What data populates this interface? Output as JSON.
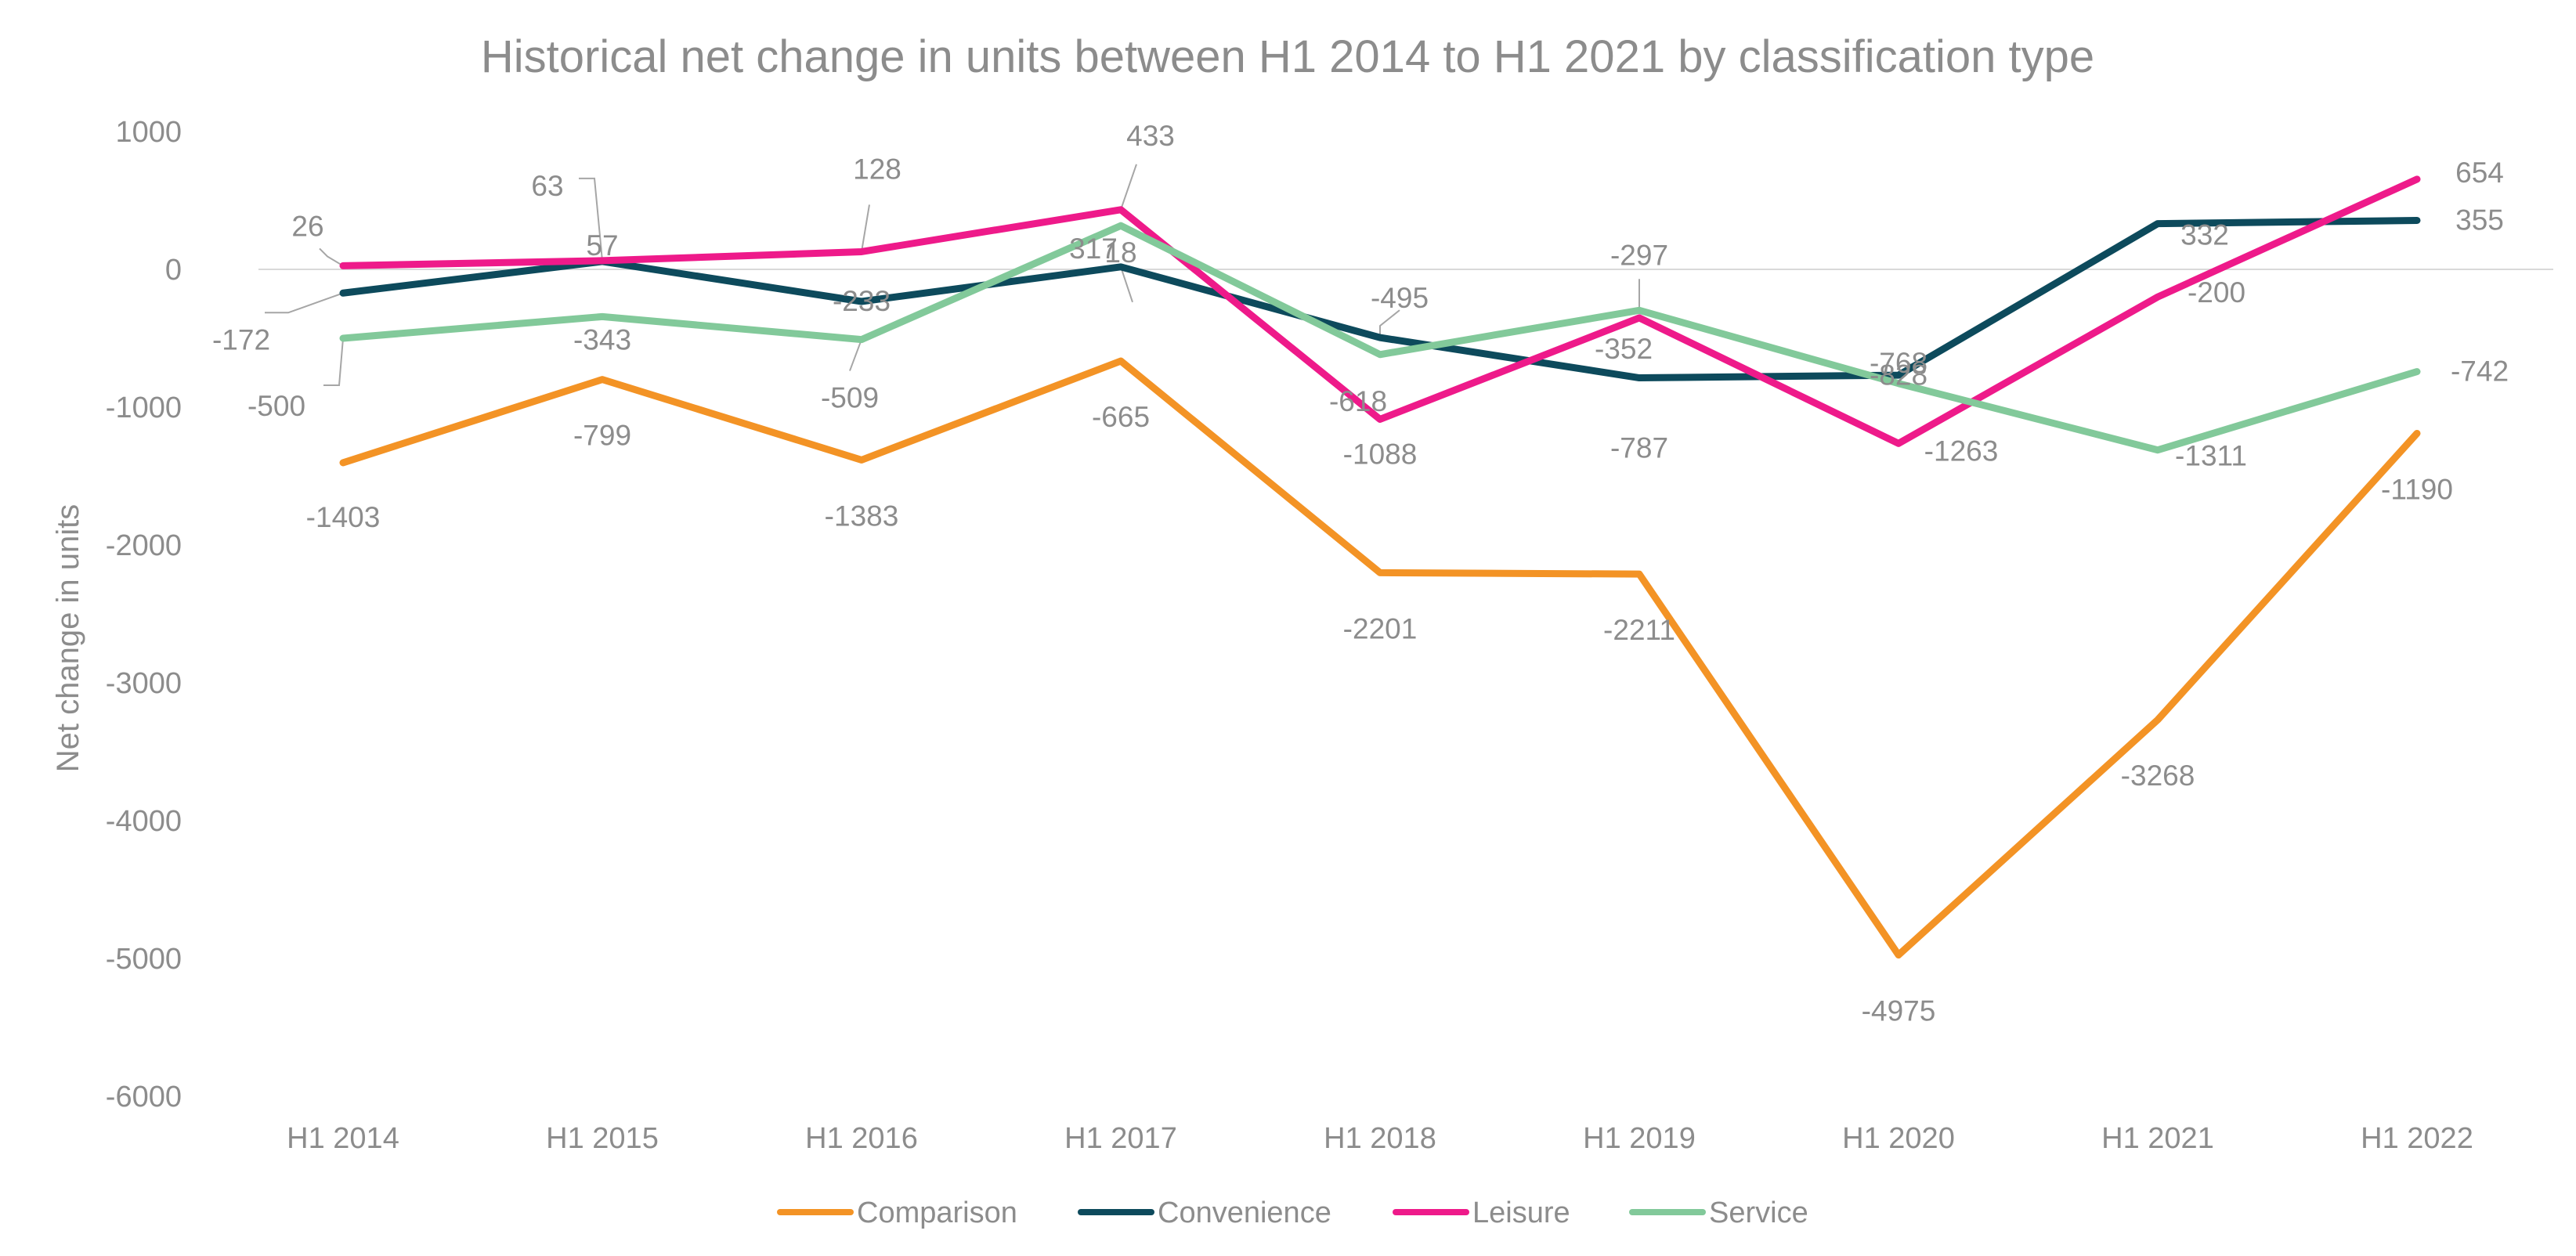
{
  "chart_data": {
    "type": "line",
    "title": "Historical net change in units between H1 2014 to H1 2021 by classification type",
    "xlabel": "",
    "ylabel": "Net change in units",
    "ylim": [
      -6000,
      1000
    ],
    "yticks": [
      1000,
      0,
      -1000,
      -2000,
      -3000,
      -4000,
      -5000,
      -6000
    ],
    "categories": [
      "H1 2014",
      "H1 2015",
      "H1 2016",
      "H1 2017",
      "H1 2018",
      "H1 2019",
      "H1 2020",
      "H1 2021",
      "H1 2022"
    ],
    "legend_position": "bottom",
    "series": [
      {
        "name": "Comparison",
        "color": "#f39325",
        "values": [
          -1403,
          -799,
          -1383,
          -665,
          -2201,
          -2211,
          -4975,
          -3268,
          -1190
        ]
      },
      {
        "name": "Convenience",
        "color": "#0d4a5c",
        "values": [
          -172,
          57,
          -233,
          18,
          -495,
          -787,
          -768,
          332,
          355
        ]
      },
      {
        "name": "Leisure",
        "color": "#ee1a8a",
        "values": [
          26,
          63,
          128,
          433,
          -1088,
          -352,
          -1263,
          -200,
          654
        ]
      },
      {
        "name": "Service",
        "color": "#82c99a",
        "values": [
          -500,
          -343,
          -509,
          317,
          -618,
          -297,
          -828,
          -1311,
          -742
        ]
      }
    ]
  }
}
